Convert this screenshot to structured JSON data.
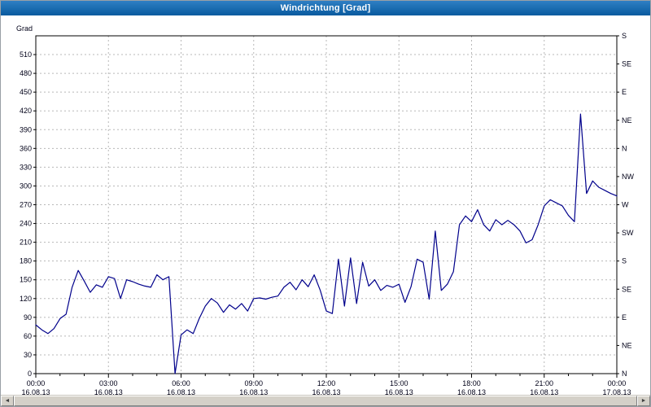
{
  "window": {
    "title": "Windrichtung [Grad]"
  },
  "chart_data": {
    "type": "line",
    "title": "Windrichtung [Grad]",
    "ylabel": "Grad",
    "line_color": "#00008b",
    "grid": "dashed",
    "grid_color": "#b8b8b8",
    "ylim": [
      0,
      540
    ],
    "xlim_hours": [
      0,
      24
    ],
    "y_left_ticks": [
      0,
      30,
      60,
      90,
      120,
      150,
      180,
      210,
      240,
      270,
      300,
      330,
      360,
      390,
      420,
      450,
      480,
      510
    ],
    "y_right_labels": [
      {
        "grad": 540,
        "label": "S"
      },
      {
        "grad": 495,
        "label": "SE"
      },
      {
        "grad": 450,
        "label": "E"
      },
      {
        "grad": 405,
        "label": "NE"
      },
      {
        "grad": 360,
        "label": "N"
      },
      {
        "grad": 315,
        "label": "NW"
      },
      {
        "grad": 270,
        "label": "W"
      },
      {
        "grad": 225,
        "label": "SW"
      },
      {
        "grad": 180,
        "label": "S"
      },
      {
        "grad": 135,
        "label": "SE"
      },
      {
        "grad": 90,
        "label": "E"
      },
      {
        "grad": 45,
        "label": "NE"
      },
      {
        "grad": 0,
        "label": "N"
      }
    ],
    "x_ticks": [
      {
        "hour": 0,
        "time": "00:00",
        "date": "16.08.13"
      },
      {
        "hour": 3,
        "time": "03:00",
        "date": "16.08.13"
      },
      {
        "hour": 6,
        "time": "06:00",
        "date": "16.08.13"
      },
      {
        "hour": 9,
        "time": "09:00",
        "date": "16.08.13"
      },
      {
        "hour": 12,
        "time": "12:00",
        "date": "16.08.13"
      },
      {
        "hour": 15,
        "time": "15:00",
        "date": "16.08.13"
      },
      {
        "hour": 18,
        "time": "18:00",
        "date": "16.08.13"
      },
      {
        "hour": 21,
        "time": "21:00",
        "date": "16.08.13"
      },
      {
        "hour": 24,
        "time": "00:00",
        "date": "17.08.13"
      }
    ],
    "samples": [
      [
        0,
        78
      ],
      [
        0.25,
        70
      ],
      [
        0.5,
        64
      ],
      [
        0.75,
        72
      ],
      [
        1,
        88
      ],
      [
        1.25,
        95
      ],
      [
        1.5,
        138
      ],
      [
        1.75,
        165
      ],
      [
        2,
        148
      ],
      [
        2.25,
        130
      ],
      [
        2.5,
        142
      ],
      [
        2.75,
        138
      ],
      [
        3,
        155
      ],
      [
        3.25,
        152
      ],
      [
        3.5,
        120
      ],
      [
        3.75,
        150
      ],
      [
        4,
        147
      ],
      [
        4.25,
        143
      ],
      [
        4.5,
        140
      ],
      [
        4.75,
        138
      ],
      [
        5,
        158
      ],
      [
        5.25,
        150
      ],
      [
        5.5,
        155
      ],
      [
        5.75,
        0
      ],
      [
        6,
        62
      ],
      [
        6.25,
        70
      ],
      [
        6.5,
        64
      ],
      [
        6.75,
        88
      ],
      [
        7,
        108
      ],
      [
        7.25,
        120
      ],
      [
        7.5,
        113
      ],
      [
        7.75,
        98
      ],
      [
        8,
        110
      ],
      [
        8.25,
        103
      ],
      [
        8.5,
        112
      ],
      [
        8.75,
        100
      ],
      [
        9,
        120
      ],
      [
        9.25,
        121
      ],
      [
        9.5,
        119
      ],
      [
        9.75,
        122
      ],
      [
        10,
        124
      ],
      [
        10.25,
        138
      ],
      [
        10.5,
        146
      ],
      [
        10.75,
        134
      ],
      [
        11,
        150
      ],
      [
        11.25,
        139
      ],
      [
        11.5,
        158
      ],
      [
        11.75,
        133
      ],
      [
        12,
        100
      ],
      [
        12.25,
        96
      ],
      [
        12.5,
        183
      ],
      [
        12.75,
        108
      ],
      [
        13,
        185
      ],
      [
        13.25,
        112
      ],
      [
        13.5,
        178
      ],
      [
        13.75,
        140
      ],
      [
        14,
        150
      ],
      [
        14.25,
        133
      ],
      [
        14.5,
        141
      ],
      [
        14.75,
        138
      ],
      [
        15,
        143
      ],
      [
        15.25,
        114
      ],
      [
        15.5,
        139
      ],
      [
        15.75,
        183
      ],
      [
        16,
        178
      ],
      [
        16.25,
        119
      ],
      [
        16.5,
        228
      ],
      [
        16.75,
        133
      ],
      [
        17,
        143
      ],
      [
        17.25,
        163
      ],
      [
        17.5,
        238
      ],
      [
        17.75,
        252
      ],
      [
        18,
        243
      ],
      [
        18.25,
        262
      ],
      [
        18.5,
        238
      ],
      [
        18.75,
        228
      ],
      [
        19,
        246
      ],
      [
        19.25,
        238
      ],
      [
        19.5,
        245
      ],
      [
        19.75,
        238
      ],
      [
        20,
        228
      ],
      [
        20.25,
        209
      ],
      [
        20.5,
        214
      ],
      [
        20.75,
        238
      ],
      [
        21,
        268
      ],
      [
        21.25,
        278
      ],
      [
        21.5,
        273
      ],
      [
        21.75,
        268
      ],
      [
        22,
        253
      ],
      [
        22.25,
        243
      ],
      [
        22.5,
        415
      ],
      [
        22.75,
        288
      ],
      [
        23,
        308
      ],
      [
        23.25,
        298
      ],
      [
        23.5,
        293
      ],
      [
        23.75,
        288
      ],
      [
        24,
        284
      ]
    ]
  },
  "scrollbar": {
    "left_arrow": "◄",
    "right_arrow": "►"
  }
}
